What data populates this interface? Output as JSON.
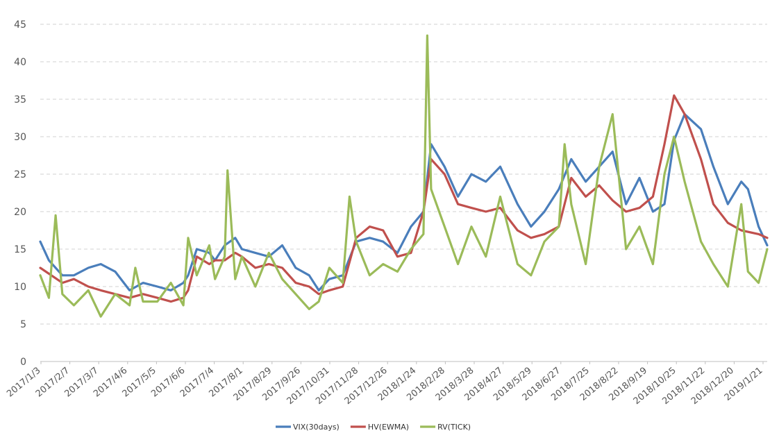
{
  "chart_data": {
    "type": "line",
    "title": "",
    "xlabel": "",
    "ylabel": "",
    "ylim": [
      0,
      45
    ],
    "yticks": [
      0,
      5,
      10,
      15,
      20,
      25,
      30,
      35,
      40,
      45
    ],
    "grid": "horizontal dashed",
    "legend_position": "bottom-center",
    "x_range": [
      "2017/1/3",
      "2019/1/30"
    ],
    "x_tick_labels": [
      "2017/1/3",
      "2017/2/7",
      "2017/3/7",
      "2017/4/6",
      "2017/5/5",
      "2017/6/6",
      "2017/7/4",
      "2017/8/1",
      "2017/8/29",
      "2017/9/26",
      "2017/10/31",
      "2017/11/28",
      "2017/12/26",
      "2018/1/24",
      "2018/2/28",
      "2018/3/28",
      "2018/4/27",
      "2018/5/29",
      "2018/6/27",
      "2018/7/25",
      "2018/8/22",
      "2018/9/19",
      "2018/10/25",
      "2018/11/22",
      "2018/12/20",
      "2019/1/21"
    ],
    "series": [
      {
        "name": "VIX(30days)",
        "color": "#4a7ebb",
        "points": [
          [
            "2017/1/3",
            16
          ],
          [
            "2017/1/12",
            13.5
          ],
          [
            "2017/1/26",
            11.5
          ],
          [
            "2017/2/7",
            11.5
          ],
          [
            "2017/2/22",
            12.5
          ],
          [
            "2017/3/7",
            13
          ],
          [
            "2017/3/22",
            12
          ],
          [
            "2017/4/6",
            9.5
          ],
          [
            "2017/4/20",
            10.5
          ],
          [
            "2017/5/5",
            10
          ],
          [
            "2017/5/19",
            9.5
          ],
          [
            "2017/6/1",
            10.5
          ],
          [
            "2017/6/6",
            11.5
          ],
          [
            "2017/6/15",
            15
          ],
          [
            "2017/6/28",
            14.5
          ],
          [
            "2017/7/4",
            13.5
          ],
          [
            "2017/7/14",
            15.5
          ],
          [
            "2017/7/25",
            16.5
          ],
          [
            "2017/8/1",
            15
          ],
          [
            "2017/8/15",
            14.5
          ],
          [
            "2017/8/29",
            14
          ],
          [
            "2017/9/12",
            15.5
          ],
          [
            "2017/9/26",
            12.5
          ],
          [
            "2017/10/10",
            11.5
          ],
          [
            "2017/10/20",
            9.5
          ],
          [
            "2017/10/31",
            11
          ],
          [
            "2017/11/14",
            11.5
          ],
          [
            "2017/11/28",
            16
          ],
          [
            "2017/12/12",
            16.5
          ],
          [
            "2017/12/26",
            16
          ],
          [
            "2018/1/10",
            14.5
          ],
          [
            "2018/1/24",
            18
          ],
          [
            "2018/2/6",
            20
          ],
          [
            "2018/2/14",
            29
          ],
          [
            "2018/2/28",
            26
          ],
          [
            "2018/3/14",
            22
          ],
          [
            "2018/3/28",
            25
          ],
          [
            "2018/4/12",
            24
          ],
          [
            "2018/4/27",
            26
          ],
          [
            "2018/5/15",
            21
          ],
          [
            "2018/5/29",
            18
          ],
          [
            "2018/6/12",
            20
          ],
          [
            "2018/6/27",
            23
          ],
          [
            "2018/7/10",
            27
          ],
          [
            "2018/7/25",
            24
          ],
          [
            "2018/8/8",
            26
          ],
          [
            "2018/8/22",
            28
          ],
          [
            "2018/9/5",
            21
          ],
          [
            "2018/9/19",
            24.5
          ],
          [
            "2018/10/3",
            20
          ],
          [
            "2018/10/15",
            21
          ],
          [
            "2018/10/25",
            29.5
          ],
          [
            "2018/11/5",
            33
          ],
          [
            "2018/11/22",
            31
          ],
          [
            "2018/12/5",
            26
          ],
          [
            "2018/12/20",
            21
          ],
          [
            "2019/1/3",
            24
          ],
          [
            "2019/1/10",
            23
          ],
          [
            "2019/1/21",
            18
          ],
          [
            "2019/1/30",
            15.5
          ]
        ]
      },
      {
        "name": "HV(EWMA)",
        "color": "#c0504d",
        "points": [
          [
            "2017/1/3",
            12.5
          ],
          [
            "2017/1/26",
            10.5
          ],
          [
            "2017/2/7",
            11
          ],
          [
            "2017/2/22",
            10
          ],
          [
            "2017/3/7",
            9.5
          ],
          [
            "2017/3/22",
            9
          ],
          [
            "2017/4/6",
            8.5
          ],
          [
            "2017/4/20",
            9
          ],
          [
            "2017/5/5",
            8.5
          ],
          [
            "2017/5/19",
            8
          ],
          [
            "2017/6/1",
            8.5
          ],
          [
            "2017/6/6",
            9.5
          ],
          [
            "2017/6/15",
            14
          ],
          [
            "2017/6/28",
            13
          ],
          [
            "2017/7/4",
            13.5
          ],
          [
            "2017/7/14",
            13.5
          ],
          [
            "2017/7/25",
            14.5
          ],
          [
            "2017/8/1",
            14
          ],
          [
            "2017/8/15",
            12.5
          ],
          [
            "2017/8/29",
            13
          ],
          [
            "2017/9/12",
            12.5
          ],
          [
            "2017/9/26",
            10.5
          ],
          [
            "2017/10/10",
            10
          ],
          [
            "2017/10/20",
            9
          ],
          [
            "2017/10/31",
            9.5
          ],
          [
            "2017/11/14",
            10
          ],
          [
            "2017/11/28",
            16.5
          ],
          [
            "2017/12/12",
            18
          ],
          [
            "2017/12/26",
            17.5
          ],
          [
            "2018/1/10",
            14
          ],
          [
            "2018/1/24",
            14.5
          ],
          [
            "2018/2/6",
            20
          ],
          [
            "2018/2/14",
            27
          ],
          [
            "2018/2/28",
            25
          ],
          [
            "2018/3/14",
            21
          ],
          [
            "2018/3/28",
            20.5
          ],
          [
            "2018/4/12",
            20
          ],
          [
            "2018/4/27",
            20.5
          ],
          [
            "2018/5/15",
            17.5
          ],
          [
            "2018/5/29",
            16.5
          ],
          [
            "2018/6/12",
            17
          ],
          [
            "2018/6/27",
            18
          ],
          [
            "2018/7/10",
            24.5
          ],
          [
            "2018/7/25",
            22
          ],
          [
            "2018/8/8",
            23.5
          ],
          [
            "2018/8/22",
            21.5
          ],
          [
            "2018/9/5",
            20
          ],
          [
            "2018/9/19",
            20.5
          ],
          [
            "2018/10/3",
            22
          ],
          [
            "2018/10/15",
            29
          ],
          [
            "2018/10/25",
            35.5
          ],
          [
            "2018/11/5",
            33
          ],
          [
            "2018/11/22",
            27
          ],
          [
            "2018/12/5",
            21
          ],
          [
            "2018/12/20",
            18.5
          ],
          [
            "2019/1/3",
            17.5
          ],
          [
            "2019/1/21",
            17
          ],
          [
            "2019/1/30",
            16.5
          ]
        ]
      },
      {
        "name": "RV(TICK)",
        "color": "#9bbb59",
        "points": [
          [
            "2017/1/3",
            11.5
          ],
          [
            "2017/1/12",
            8.5
          ],
          [
            "2017/1/19",
            19.5
          ],
          [
            "2017/1/26",
            9
          ],
          [
            "2017/2/7",
            7.5
          ],
          [
            "2017/2/22",
            9.5
          ],
          [
            "2017/3/7",
            6
          ],
          [
            "2017/3/22",
            9
          ],
          [
            "2017/4/6",
            7.5
          ],
          [
            "2017/4/12",
            12.5
          ],
          [
            "2017/4/20",
            8
          ],
          [
            "2017/5/5",
            8
          ],
          [
            "2017/5/19",
            10.5
          ],
          [
            "2017/6/1",
            7.5
          ],
          [
            "2017/6/6",
            16.5
          ],
          [
            "2017/6/15",
            11.5
          ],
          [
            "2017/6/28",
            15.5
          ],
          [
            "2017/7/4",
            11
          ],
          [
            "2017/7/14",
            14
          ],
          [
            "2017/7/17",
            25.5
          ],
          [
            "2017/7/25",
            11
          ],
          [
            "2017/8/1",
            14
          ],
          [
            "2017/8/15",
            10
          ],
          [
            "2017/8/29",
            14.5
          ],
          [
            "2017/9/12",
            11
          ],
          [
            "2017/9/26",
            9
          ],
          [
            "2017/10/10",
            7
          ],
          [
            "2017/10/20",
            8
          ],
          [
            "2017/10/31",
            12.5
          ],
          [
            "2017/11/14",
            10.5
          ],
          [
            "2017/11/21",
            22
          ],
          [
            "2017/11/28",
            16
          ],
          [
            "2017/12/12",
            11.5
          ],
          [
            "2017/12/26",
            13
          ],
          [
            "2018/1/10",
            12
          ],
          [
            "2018/1/24",
            15
          ],
          [
            "2018/2/6",
            17
          ],
          [
            "2018/2/10",
            43.5
          ],
          [
            "2018/2/14",
            23
          ],
          [
            "2018/2/28",
            18
          ],
          [
            "2018/3/14",
            13
          ],
          [
            "2018/3/28",
            18
          ],
          [
            "2018/4/12",
            14
          ],
          [
            "2018/4/27",
            22
          ],
          [
            "2018/5/15",
            13
          ],
          [
            "2018/5/29",
            11.5
          ],
          [
            "2018/6/12",
            16
          ],
          [
            "2018/6/27",
            18
          ],
          [
            "2018/7/3",
            29
          ],
          [
            "2018/7/10",
            21
          ],
          [
            "2018/7/25",
            13
          ],
          [
            "2018/8/8",
            26
          ],
          [
            "2018/8/22",
            33
          ],
          [
            "2018/9/5",
            15
          ],
          [
            "2018/9/19",
            18
          ],
          [
            "2018/10/3",
            13
          ],
          [
            "2018/10/15",
            25
          ],
          [
            "2018/10/25",
            30
          ],
          [
            "2018/11/5",
            24
          ],
          [
            "2018/11/22",
            16
          ],
          [
            "2018/12/5",
            13
          ],
          [
            "2018/12/20",
            10
          ],
          [
            "2019/1/3",
            21
          ],
          [
            "2019/1/10",
            12
          ],
          [
            "2019/1/21",
            10.5
          ],
          [
            "2019/1/30",
            15
          ]
        ]
      }
    ]
  }
}
